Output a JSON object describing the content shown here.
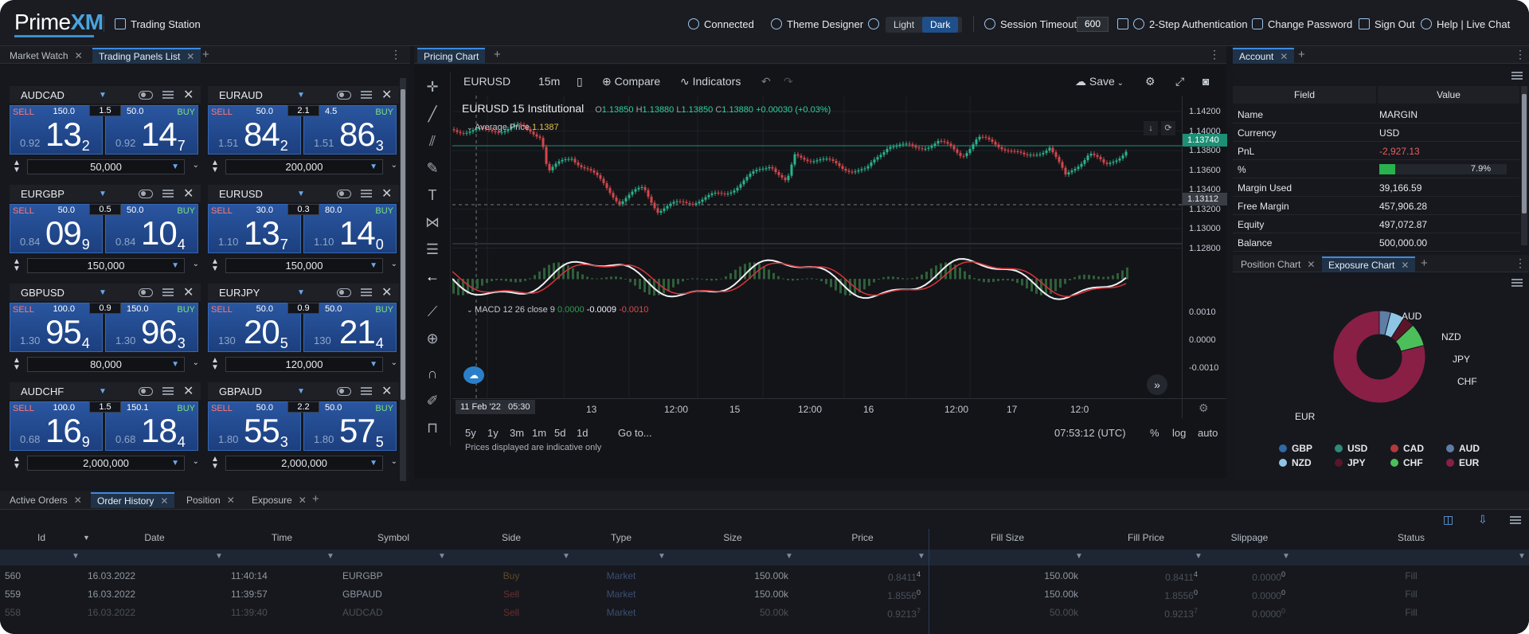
{
  "header": {
    "brand": "Prime",
    "brand_mark": "XM",
    "station": "Trading Station",
    "connected": "Connected",
    "theme_designer": "Theme Designer",
    "theme_light": "Light",
    "theme_dark": "Dark",
    "session_timeout": "Session Timeout",
    "session_value": "600",
    "two_step": "2-Step Authentication",
    "change_password": "Change Password",
    "sign_out": "Sign Out",
    "help": "Help | Live Chat"
  },
  "left_tabs": [
    "Market Watch",
    "Trading Panels List"
  ],
  "chart_tabs": [
    "Pricing Chart"
  ],
  "right_tabs": [
    "Account"
  ],
  "exposure_tabs": [
    "Position Chart",
    "Exposure Chart"
  ],
  "order_tabs": [
    "Active Orders",
    "Order History",
    "Position",
    "Exposure"
  ],
  "panels": [
    {
      "symbol": "AUDCAD",
      "sell": "SELL",
      "buy": "BUY",
      "spread": "1.5",
      "sell_vol": "150.0",
      "buy_vol": "50.0",
      "sell_small": "0.92",
      "sell_big": "13",
      "sell_pip": "2",
      "buy_small": "0.92",
      "buy_big": "14",
      "buy_pip": "7",
      "amount": "50,000"
    },
    {
      "symbol": "EURAUD",
      "sell": "SELL",
      "buy": "BUY",
      "spread": "2.1",
      "sell_vol": "50.0",
      "buy_vol": "4.5",
      "sell_small": "1.51",
      "sell_big": "84",
      "sell_pip": "2",
      "buy_small": "1.51",
      "buy_big": "86",
      "buy_pip": "3",
      "amount": "200,000"
    },
    {
      "symbol": "EURGBP",
      "sell": "SELL",
      "buy": "BUY",
      "spread": "0.5",
      "sell_vol": "50.0",
      "buy_vol": "50.0",
      "sell_small": "0.84",
      "sell_big": "09",
      "sell_pip": "9",
      "buy_small": "0.84",
      "buy_big": "10",
      "buy_pip": "4",
      "amount": "150,000"
    },
    {
      "symbol": "EURUSD",
      "sell": "SELL",
      "buy": "BUY",
      "spread": "0.3",
      "sell_vol": "30.0",
      "buy_vol": "80.0",
      "sell_small": "1.10",
      "sell_big": "13",
      "sell_pip": "7",
      "buy_small": "1.10",
      "buy_big": "14",
      "buy_pip": "0",
      "amount": "150,000"
    },
    {
      "symbol": "GBPUSD",
      "sell": "SELL",
      "buy": "BUY",
      "spread": "0.9",
      "sell_vol": "100.0",
      "buy_vol": "150.0",
      "sell_small": "1.30",
      "sell_big": "95",
      "sell_pip": "4",
      "buy_small": "1.30",
      "buy_big": "96",
      "buy_pip": "3",
      "amount": "80,000"
    },
    {
      "symbol": "EURJPY",
      "sell": "SELL",
      "buy": "BUY",
      "spread": "0.9",
      "sell_vol": "50.0",
      "buy_vol": "50.0",
      "sell_small": "130",
      "sell_big": "20",
      "sell_pip": "5",
      "buy_small": "130",
      "buy_big": "21",
      "buy_pip": "4",
      "amount": "120,000"
    },
    {
      "symbol": "AUDCHF",
      "sell": "SELL",
      "buy": "BUY",
      "spread": "1.5",
      "sell_vol": "100.0",
      "buy_vol": "150.1",
      "sell_small": "0.68",
      "sell_big": "16",
      "sell_pip": "9",
      "buy_small": "0.68",
      "buy_big": "18",
      "buy_pip": "4",
      "amount": "2,000,000"
    },
    {
      "symbol": "GBPAUD",
      "sell": "SELL",
      "buy": "BUY",
      "spread": "2.2",
      "sell_vol": "50.0",
      "buy_vol": "50.0",
      "sell_small": "1.80",
      "sell_big": "55",
      "sell_pip": "3",
      "buy_small": "1.80",
      "buy_big": "57",
      "buy_pip": "5",
      "amount": "2,000,000"
    }
  ],
  "chart": {
    "symbol": "EURUSD",
    "interval": "15m",
    "compare": "Compare",
    "indicators": "Indicators",
    "save": "Save",
    "legend_title": "EURUSD  15  Institutional",
    "o_label": "O",
    "o": "1.13850",
    "h_label": "H",
    "h": "1.13880",
    "l_label": "L",
    "l": "1.13850",
    "c_label": "C",
    "c": "1.13880",
    "change": "+0.00030 (+0.03%)",
    "avg_label": "Average Price",
    "avg_value": "1.1387",
    "macd_label": "MACD 12 26 close 9",
    "macd_v1": "0.0000",
    "macd_v2": "-0.0009",
    "macd_v3": "-0.0010",
    "ranges": [
      "5y",
      "1y",
      "3m",
      "1m",
      "5d",
      "1d"
    ],
    "goto": "Go to...",
    "clock": "07:53:12 (UTC)",
    "pct": "%",
    "log": "log",
    "auto": "auto",
    "disclaimer": "Prices displayed are indicative only",
    "date_marker": "11 Feb '22",
    "time_marker": "05:30",
    "price_tag": "1.13740",
    "cross_tag": "1.13112"
  },
  "chart_data": {
    "type": "line",
    "title": "EURUSD 15 Institutional",
    "series": [
      {
        "name": "EURUSD",
        "x": [
          "11 Feb '22",
          "13",
          "12:00",
          "15",
          "12:00",
          "16",
          "12:00",
          "17",
          "12:00"
        ],
        "values": [
          1.1395,
          1.1392,
          1.13,
          1.1312,
          1.1365,
          1.1358,
          1.1384,
          1.1371,
          1.1374
        ]
      }
    ],
    "y_ticks": [
      "1.14200",
      "1.14000",
      "1.13800",
      "1.13600",
      "1.13400",
      "1.13200",
      "1.13000",
      "1.12800"
    ],
    "macd_ticks": [
      "0.0010",
      "0.0000",
      "-0.0010"
    ],
    "x_ticks": [
      "13",
      "12:00",
      "15",
      "12:00",
      "16",
      "12:00",
      "17",
      "12:0"
    ],
    "ylim": [
      1.127,
      1.143
    ]
  },
  "account": {
    "col_field": "Field",
    "col_value": "Value",
    "rows": [
      {
        "f": "Name",
        "v": "MARGIN"
      },
      {
        "f": "Currency",
        "v": "USD"
      },
      {
        "f": "PnL",
        "v": "-2,927.13"
      },
      {
        "f": "%",
        "v": "7.9%"
      },
      {
        "f": "Margin Used",
        "v": "39,166.59"
      },
      {
        "f": "Free Margin",
        "v": "457,906.28"
      },
      {
        "f": "Equity",
        "v": "497,072.87"
      },
      {
        "f": "Balance",
        "v": "500,000.00"
      }
    ],
    "percent_fill": 0.079
  },
  "exposure": {
    "labels": [
      "AUD",
      "NZD",
      "JPY",
      "CHF",
      "EUR"
    ],
    "legend": [
      {
        "n": "GBP",
        "c": "#2f6aa3"
      },
      {
        "n": "USD",
        "c": "#2e8a78"
      },
      {
        "n": "CAD",
        "c": "#b2383e"
      },
      {
        "n": "AUD",
        "c": "#5f7ea6"
      },
      {
        "n": "NZD",
        "c": "#8ec5e4"
      },
      {
        "n": "JPY",
        "c": "#5a1628"
      },
      {
        "n": "CHF",
        "c": "#4dbf5a"
      },
      {
        "n": "EUR",
        "c": "#8a1f45"
      }
    ],
    "slices": [
      {
        "c": "#8a1f45",
        "v": 0.79
      },
      {
        "c": "#5f7ea6",
        "v": 0.04
      },
      {
        "c": "#8ec5e4",
        "v": 0.05
      },
      {
        "c": "#5a1628",
        "v": 0.04
      },
      {
        "c": "#4dbf5a",
        "v": 0.08
      }
    ]
  },
  "orders": {
    "columns": [
      "Id",
      "Date",
      "Time",
      "Symbol",
      "Side",
      "Type",
      "Size",
      "Price",
      "Fill Size",
      "Fill Price",
      "Slippage",
      "Status"
    ],
    "rows": [
      {
        "id": "560",
        "date": "16.03.2022",
        "time": "11:40:14",
        "symbol": "EURGBP",
        "side": "Buy",
        "type": "Market",
        "size": "150.00k",
        "price": "0.8411",
        "price_pip": "4",
        "fill_size": "150.00k",
        "fill_price": "0.8411",
        "fill_pip": "4",
        "slip": "0.0000",
        "slip_pip": "0",
        "status": "Fill"
      },
      {
        "id": "559",
        "date": "16.03.2022",
        "time": "11:39:57",
        "symbol": "GBPAUD",
        "side": "Sell",
        "type": "Market",
        "size": "150.00k",
        "price": "1.8556",
        "price_pip": "0",
        "fill_size": "150.00k",
        "fill_price": "1.8556",
        "fill_pip": "0",
        "slip": "0.0000",
        "slip_pip": "0",
        "status": "Fill"
      },
      {
        "id": "558",
        "date": "16.03.2022",
        "time": "11:39:40",
        "symbol": "AUDCAD",
        "side": "Sell",
        "type": "Market",
        "size": "50.00k",
        "price": "0.9213",
        "price_pip": "7",
        "fill_size": "50.00k",
        "fill_price": "0.9213",
        "fill_pip": "7",
        "slip": "0.0000",
        "slip_pip": "0",
        "status": "Fill"
      }
    ]
  }
}
